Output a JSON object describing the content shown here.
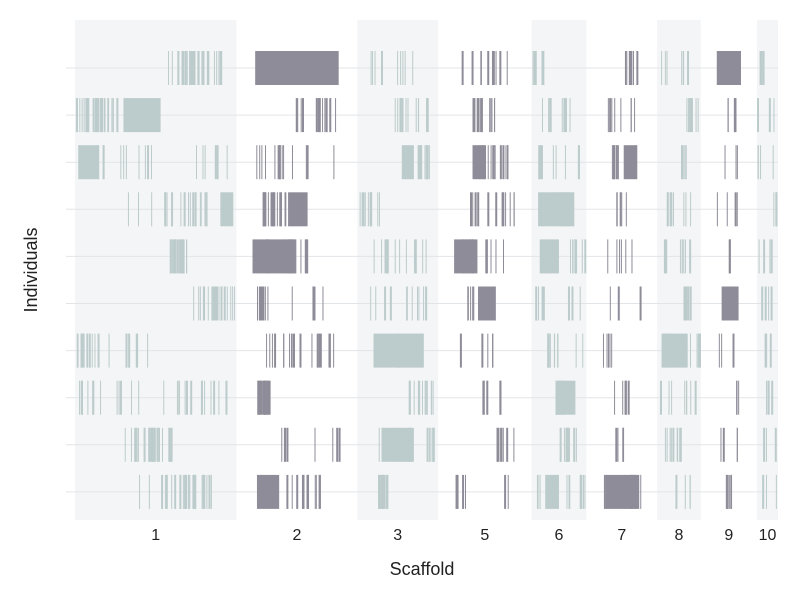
{
  "chart_data": {
    "type": "genomic-strip",
    "xlabel": "Scaffold",
    "ylabel": "Individuals",
    "grid": true,
    "legend": "none",
    "colors": {
      "light_tone": "#bccbcb",
      "dark_tone": "#8e8c98",
      "band_shade": "#f4f5f6",
      "gridline": "#e2e5e8",
      "axis_text": "#222222"
    },
    "scaffolds": [
      {
        "label": "1",
        "length": 1.0,
        "tone": "light"
      },
      {
        "label": "2",
        "length": 0.55,
        "tone": "dark"
      },
      {
        "label": "3",
        "length": 0.5,
        "tone": "light"
      },
      {
        "label": "5",
        "length": 0.38,
        "tone": "dark"
      },
      {
        "label": "6",
        "length": 0.34,
        "tone": "light"
      },
      {
        "label": "7",
        "length": 0.24,
        "tone": "dark"
      },
      {
        "label": "8",
        "length": 0.27,
        "tone": "light"
      },
      {
        "label": "9",
        "length": 0.15,
        "tone": "dark"
      },
      {
        "label": "10",
        "length": 0.13,
        "tone": "light"
      }
    ],
    "individuals": 10,
    "blocks": [
      {
        "individual": 1,
        "scaffold": "2",
        "start": 0.03,
        "end": 0.97
      },
      {
        "individual": 1,
        "scaffold": "9",
        "start": 0.0,
        "end": 1.0
      },
      {
        "individual": 2,
        "scaffold": "1",
        "start": 0.3,
        "end": 0.53
      },
      {
        "individual": 3,
        "scaffold": "1",
        "start": 0.02,
        "end": 0.15
      },
      {
        "individual": 3,
        "scaffold": "3",
        "start": 0.55,
        "end": 0.7
      },
      {
        "individual": 3,
        "scaffold": "5",
        "start": 0.3,
        "end": 0.52
      },
      {
        "individual": 3,
        "scaffold": "7",
        "start": 0.55,
        "end": 0.9
      },
      {
        "individual": 4,
        "scaffold": "1",
        "start": 0.9,
        "end": 0.98
      },
      {
        "individual": 4,
        "scaffold": "2",
        "start": 0.4,
        "end": 0.62
      },
      {
        "individual": 4,
        "scaffold": "6",
        "start": 0.12,
        "end": 0.78
      },
      {
        "individual": 5,
        "scaffold": "2",
        "start": 0.0,
        "end": 0.48
      },
      {
        "individual": 5,
        "scaffold": "5",
        "start": 0.0,
        "end": 0.38
      },
      {
        "individual": 5,
        "scaffold": "6",
        "start": 0.15,
        "end": 0.5
      },
      {
        "individual": 6,
        "scaffold": "5",
        "start": 0.4,
        "end": 0.68
      },
      {
        "individual": 6,
        "scaffold": "9",
        "start": 0.2,
        "end": 0.9
      },
      {
        "individual": 7,
        "scaffold": "3",
        "start": 0.2,
        "end": 0.82
      },
      {
        "individual": 7,
        "scaffold": "8",
        "start": 0.1,
        "end": 0.7
      },
      {
        "individual": 8,
        "scaffold": "6",
        "start": 0.45,
        "end": 0.8
      },
      {
        "individual": 9,
        "scaffold": "3",
        "start": 0.3,
        "end": 0.7
      },
      {
        "individual": 10,
        "scaffold": "2",
        "start": 0.05,
        "end": 0.3
      },
      {
        "individual": 10,
        "scaffold": "6",
        "start": 0.25,
        "end": 0.5
      },
      {
        "individual": 10,
        "scaffold": "7",
        "start": 0.1,
        "end": 0.95
      }
    ]
  }
}
